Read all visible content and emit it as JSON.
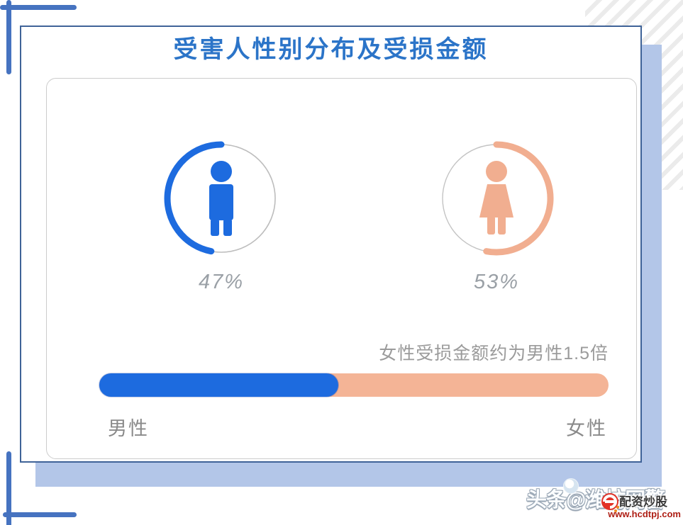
{
  "chart_data": {
    "type": "pie",
    "title": "受害人性别分布及受损金额",
    "categories": [
      "男性",
      "女性"
    ],
    "values": [
      47,
      53
    ],
    "unit": "%",
    "value_labels": [
      "47%",
      "53%"
    ],
    "annotation": "女性受损金额约为男性1.5倍",
    "bar": {
      "male_fraction_percent": 47,
      "female_fraction_percent": 53,
      "note": "female loss amount ≈ 1.5× male"
    },
    "colors": {
      "male": "#1d6bdf",
      "female": "#f1ae90",
      "ring_gray": "#bdbdbd",
      "title_blue": "#2b74c8",
      "panel_border": "#3f6398",
      "shadow_blue": "#b3c6e8",
      "bracket_blue": "#4673c0"
    },
    "legend_position": "below-bar"
  },
  "labels": {
    "male": "男性",
    "female": "女性",
    "male_percent": "47%",
    "female_percent": "53%",
    "caption": "女性受损金额约为男性1.5倍"
  },
  "watermark": {
    "toutiao": "头条@潍坊网警",
    "overlay": "配资炒股",
    "url": "www.hcdtpj.com"
  }
}
